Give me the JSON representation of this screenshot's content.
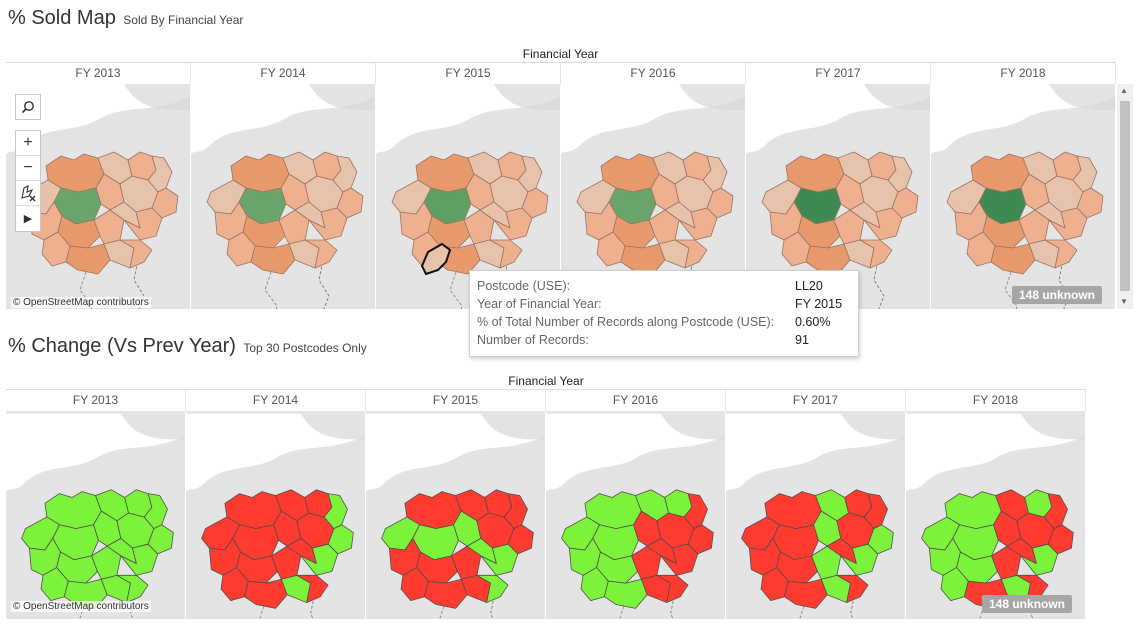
{
  "colors": {
    "sold_light": "#e8c3ac",
    "sold_mid": "#eeb08f",
    "sold_dark": "#e89a6c",
    "sold_green": "#6aa56c",
    "sold_green_dark": "#3f8a52",
    "change_up": "#7df23a",
    "change_down": "#ff3b30",
    "basemap": "#e4e4e4",
    "water": "#ffffff"
  },
  "sold_map": {
    "title": "% Sold Map",
    "subtitle": "Sold By Financial Year",
    "column_group": "Financial Year",
    "years": [
      {
        "label": "FY 2013",
        "center_color": "#6aa56c"
      },
      {
        "label": "FY 2014",
        "center_color": "#6aa56c"
      },
      {
        "label": "FY 2015",
        "center_color": "#5f9f62"
      },
      {
        "label": "FY 2016",
        "center_color": "#6aa56c"
      },
      {
        "label": "FY 2017",
        "center_color": "#3f8a52"
      },
      {
        "label": "FY 2018",
        "center_color": "#3f8a52"
      }
    ],
    "attribution": "© OpenStreetMap contributors",
    "unknown": "148 unknown",
    "tools": {
      "search": "search-icon",
      "zoom_in": "+",
      "zoom_out": "−",
      "select": "lasso-select-icon",
      "more": "▶"
    }
  },
  "tooltip": {
    "rows": [
      {
        "key": "Postcode (USE):",
        "value": "LL20"
      },
      {
        "key": "Year of Financial Year:",
        "value": "FY 2015"
      },
      {
        "key": "% of Total Number of Records along Postcode (USE):",
        "value": "0.60%"
      },
      {
        "key": "Number of Records:",
        "value": "91"
      }
    ]
  },
  "change_map": {
    "title": "% Change (Vs Prev Year)",
    "subtitle": "Top 30 Postcodes Only",
    "column_group": "Financial Year",
    "years": [
      {
        "label": "FY 2013"
      },
      {
        "label": "FY 2014"
      },
      {
        "label": "FY 2015"
      },
      {
        "label": "FY 2016"
      },
      {
        "label": "FY 2017"
      },
      {
        "label": "FY 2018"
      }
    ],
    "attribution": "© OpenStreetMap contributors",
    "unknown": "148 unknown"
  }
}
